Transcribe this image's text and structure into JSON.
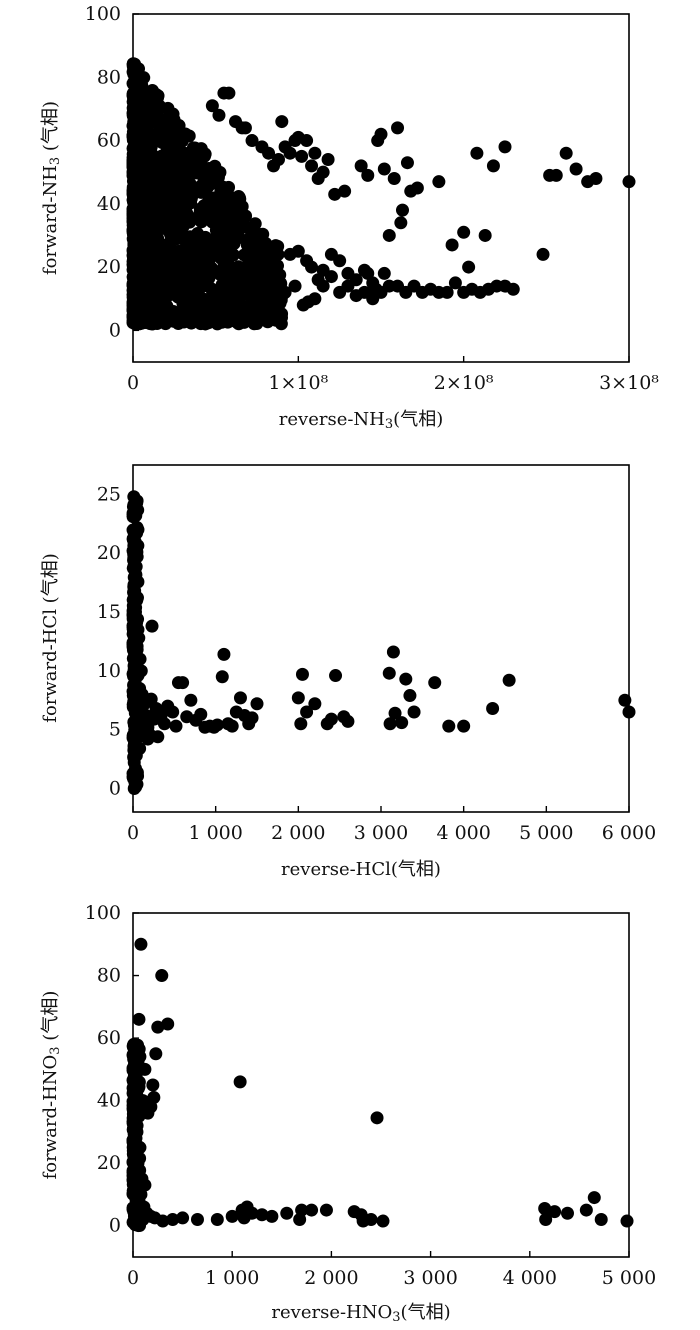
{
  "chart_data": [
    {
      "type": "scatter",
      "xlabel_parts": [
        "reverse-NH",
        "3",
        "(气相)"
      ],
      "ylabel_parts": [
        "forward-NH",
        "3",
        " (气相)"
      ],
      "xlim": [
        0,
        300000000
      ],
      "ylim": [
        -10,
        100
      ],
      "xticks": [
        0,
        100000000,
        200000000,
        300000000
      ],
      "xtick_labels": [
        "0",
        "1×10⁸",
        "2×10⁸",
        "3×10⁸"
      ],
      "yticks": [
        0,
        20,
        40,
        60,
        80,
        100
      ],
      "ytick_labels": [
        "0",
        "20",
        "40",
        "60",
        "80",
        "100"
      ],
      "marker_color": "#000000",
      "cluster": {
        "x_max": 90000000,
        "y_min": 2,
        "y_max": 85,
        "note_count": 1400
      },
      "points": [
        [
          48000000.0,
          71
        ],
        [
          52000000.0,
          68
        ],
        [
          55000000.0,
          75
        ],
        [
          58000000.0,
          75
        ],
        [
          62000000.0,
          66
        ],
        [
          66000000.0,
          64
        ],
        [
          68000000.0,
          64
        ],
        [
          72000000.0,
          60
        ],
        [
          78000000.0,
          58
        ],
        [
          82000000.0,
          56
        ],
        [
          85000000.0,
          52
        ],
        [
          88000000.0,
          54
        ],
        [
          90000000.0,
          66
        ],
        [
          92000000.0,
          58
        ],
        [
          95000000.0,
          56
        ],
        [
          98000000.0,
          60
        ],
        [
          100000000.0,
          61
        ],
        [
          102000000.0,
          55
        ],
        [
          105000000.0,
          60
        ],
        [
          108000000.0,
          52
        ],
        [
          110000000.0,
          56
        ],
        [
          112000000.0,
          48
        ],
        [
          115000000.0,
          50
        ],
        [
          118000000.0,
          54
        ],
        [
          122000000.0,
          43
        ],
        [
          128000000.0,
          44
        ],
        [
          138000000.0,
          52
        ],
        [
          142000000.0,
          49
        ],
        [
          148000000.0,
          60
        ],
        [
          150000000.0,
          62
        ],
        [
          152000000.0,
          51
        ],
        [
          155000000.0,
          30
        ],
        [
          158000000.0,
          48
        ],
        [
          160000000.0,
          64
        ],
        [
          162000000.0,
          34
        ],
        [
          163000000.0,
          38
        ],
        [
          166000000.0,
          53
        ],
        [
          168000000.0,
          44
        ],
        [
          172000000.0,
          45
        ],
        [
          185000000.0,
          47
        ],
        [
          193000000.0,
          27
        ],
        [
          200000000.0,
          31
        ],
        [
          203000000.0,
          20
        ],
        [
          208000000.0,
          56
        ],
        [
          213000000.0,
          30
        ],
        [
          218000000.0,
          52
        ],
        [
          225000000.0,
          58
        ],
        [
          248000000.0,
          24
        ],
        [
          252000000.0,
          49
        ],
        [
          256000000.0,
          49
        ],
        [
          262000000.0,
          56
        ],
        [
          268000000.0,
          51
        ],
        [
          275000000.0,
          47
        ],
        [
          280000000.0,
          48
        ],
        [
          300000000.0,
          47
        ],
        [
          60000000.0,
          28
        ],
        [
          70000000.0,
          22
        ],
        [
          80000000.0,
          20
        ],
        [
          85000000.0,
          24
        ],
        [
          95000000.0,
          24
        ],
        [
          100000000.0,
          25
        ],
        [
          105000000.0,
          22
        ],
        [
          108000000.0,
          20
        ],
        [
          115000000.0,
          19
        ],
        [
          120000000.0,
          24
        ],
        [
          125000000.0,
          22
        ],
        [
          130000000.0,
          18
        ],
        [
          135000000.0,
          16
        ],
        [
          140000000.0,
          19
        ],
        [
          145000000.0,
          15
        ],
        [
          150000000.0,
          12
        ],
        [
          152000000.0,
          18
        ],
        [
          155000000.0,
          14
        ],
        [
          160000000.0,
          14
        ],
        [
          165000000.0,
          12
        ],
        [
          170000000.0,
          14
        ],
        [
          175000000.0,
          12
        ],
        [
          180000000.0,
          13
        ],
        [
          185000000.0,
          12
        ],
        [
          195000000.0,
          15
        ],
        [
          200000000.0,
          12
        ],
        [
          205000000.0,
          13
        ],
        [
          210000000.0,
          12
        ],
        [
          215000000.0,
          13
        ],
        [
          220000000.0,
          14
        ],
        [
          225000000.0,
          14
        ],
        [
          230000000.0,
          13
        ],
        [
          110000000.0,
          10
        ],
        [
          115000000.0,
          14
        ],
        [
          125000000.0,
          12
        ],
        [
          135000000.0,
          11
        ],
        [
          140000000.0,
          12
        ],
        [
          145000000.0,
          10
        ],
        [
          190000000.0,
          12
        ],
        [
          78000000.0,
          9
        ],
        [
          88000000.0,
          10
        ],
        [
          92000000.0,
          12
        ],
        [
          98000000.0,
          14
        ],
        [
          103000000.0,
          8
        ],
        [
          106000000.0,
          9
        ],
        [
          112000000.0,
          16
        ],
        [
          130000000.0,
          14
        ],
        [
          142000000.0,
          18
        ],
        [
          147000000.0,
          13
        ],
        [
          120000000.0,
          17
        ]
      ]
    },
    {
      "type": "scatter",
      "xlabel_parts": [
        "reverse-HCl(气相)"
      ],
      "ylabel_parts": [
        "forward-HCl (气相)"
      ],
      "xlim": [
        0,
        6000
      ],
      "ylim": [
        -2,
        27.5
      ],
      "xticks": [
        0,
        1000,
        2000,
        3000,
        4000,
        5000,
        6000
      ],
      "xtick_labels": [
        "0",
        "1 000",
        "2 000",
        "3 000",
        "4 000",
        "5 000",
        "6 000"
      ],
      "yticks": [
        0,
        5,
        10,
        15,
        20,
        25
      ],
      "ytick_labels": [
        "0",
        "5",
        "10",
        "15",
        "20",
        "25"
      ],
      "marker_color": "#000000",
      "cluster": {
        "x_max": 60,
        "y_min": 0,
        "y_max": 25,
        "note_count": 140
      },
      "points": [
        [
          10,
          24.8
        ],
        [
          20,
          23.4
        ],
        [
          30,
          22
        ],
        [
          15,
          21.7
        ],
        [
          25,
          21
        ],
        [
          40,
          20.5
        ],
        [
          10,
          19.6
        ],
        [
          35,
          17.5
        ],
        [
          20,
          16.8
        ],
        [
          45,
          16
        ],
        [
          30,
          15
        ],
        [
          55,
          14.4
        ],
        [
          15,
          14
        ],
        [
          60,
          13.5
        ],
        [
          230,
          13.8
        ],
        [
          70,
          12.8
        ],
        [
          20,
          12.3
        ],
        [
          50,
          11.8
        ],
        [
          85,
          11
        ],
        [
          30,
          10.5
        ],
        [
          100,
          10
        ],
        [
          60,
          9.6
        ],
        [
          25,
          9
        ],
        [
          80,
          8.5
        ],
        [
          110,
          8
        ],
        [
          40,
          7.6
        ],
        [
          140,
          7.2
        ],
        [
          60,
          6.6
        ],
        [
          160,
          6.2
        ],
        [
          90,
          5.8
        ],
        [
          30,
          5.5
        ],
        [
          180,
          5.2
        ],
        [
          120,
          4.8
        ],
        [
          200,
          4.6
        ],
        [
          50,
          4.3
        ],
        [
          20,
          3.8
        ],
        [
          80,
          3.4
        ],
        [
          40,
          2.8
        ],
        [
          15,
          2.2
        ],
        [
          30,
          1.7
        ],
        [
          10,
          1.1
        ],
        [
          25,
          0.5
        ],
        [
          15,
          0
        ],
        [
          220,
          7.6
        ],
        [
          280,
          6.8
        ],
        [
          340,
          6.2
        ],
        [
          380,
          5.5
        ],
        [
          420,
          7
        ],
        [
          480,
          6.5
        ],
        [
          520,
          5.3
        ],
        [
          550,
          9
        ],
        [
          600,
          9
        ],
        [
          650,
          6.1
        ],
        [
          700,
          7.5
        ],
        [
          760,
          5.8
        ],
        [
          820,
          6.3
        ],
        [
          870,
          5.2
        ],
        [
          930,
          5.3
        ],
        [
          980,
          5.2
        ],
        [
          1020,
          5.4
        ],
        [
          1100,
          11.4
        ],
        [
          1080,
          9.5
        ],
        [
          1150,
          5.5
        ],
        [
          1200,
          5.3
        ],
        [
          1250,
          6.5
        ],
        [
          1300,
          7.7
        ],
        [
          1350,
          6.2
        ],
        [
          1400,
          5.5
        ],
        [
          1500,
          7.2
        ],
        [
          1440,
          6
        ],
        [
          2000,
          7.7
        ],
        [
          2050,
          9.7
        ],
        [
          2030,
          5.5
        ],
        [
          2100,
          6.5
        ],
        [
          2200,
          7.2
        ],
        [
          2350,
          5.5
        ],
        [
          2400,
          5.9
        ],
        [
          2450,
          9.6
        ],
        [
          2550,
          6.1
        ],
        [
          2600,
          5.7
        ],
        [
          3100,
          9.8
        ],
        [
          3150,
          11.6
        ],
        [
          3170,
          6.4
        ],
        [
          3110,
          5.5
        ],
        [
          3250,
          5.6
        ],
        [
          3300,
          9.3
        ],
        [
          3350,
          7.9
        ],
        [
          3400,
          6.5
        ],
        [
          3650,
          9
        ],
        [
          3820,
          5.3
        ],
        [
          4000,
          5.3
        ],
        [
          4350,
          6.8
        ],
        [
          4550,
          9.2
        ],
        [
          5950,
          7.5
        ],
        [
          6000,
          6.5
        ],
        [
          300,
          4.4
        ],
        [
          260,
          5.9
        ],
        [
          180,
          4.2
        ]
      ]
    },
    {
      "type": "scatter",
      "xlabel_parts": [
        "reverse-HNO",
        "3",
        "(气相)"
      ],
      "ylabel_parts": [
        "forward-HNO",
        "3",
        " (气相)"
      ],
      "xlim": [
        0,
        5000
      ],
      "ylim": [
        -10,
        100
      ],
      "xticks": [
        0,
        1000,
        2000,
        3000,
        4000,
        5000
      ],
      "xtick_labels": [
        "0",
        "1 000",
        "2 000",
        "3 000",
        "4 000",
        "5 000"
      ],
      "yticks": [
        0,
        20,
        40,
        60,
        80,
        100
      ],
      "ytick_labels": [
        "0",
        "20",
        "40",
        "60",
        "80",
        "100"
      ],
      "marker_color": "#000000",
      "cluster": {
        "x_max": 70,
        "y_min": 0,
        "y_max": 58,
        "note_count": 160
      },
      "points": [
        [
          80,
          90
        ],
        [
          290,
          80
        ],
        [
          60,
          66
        ],
        [
          350,
          64.5
        ],
        [
          250,
          63.5
        ],
        [
          230,
          55
        ],
        [
          120,
          50
        ],
        [
          200,
          45
        ],
        [
          210,
          41
        ],
        [
          180,
          38
        ],
        [
          150,
          36
        ],
        [
          100,
          40
        ],
        [
          60,
          35
        ],
        [
          40,
          30
        ],
        [
          30,
          28
        ],
        [
          70,
          25
        ],
        [
          50,
          20
        ],
        [
          30,
          18
        ],
        [
          90,
          15
        ],
        [
          120,
          13
        ],
        [
          80,
          10
        ],
        [
          60,
          8
        ],
        [
          110,
          6
        ],
        [
          140,
          4
        ],
        [
          180,
          3
        ],
        [
          100,
          2
        ],
        [
          220,
          2.5
        ],
        [
          300,
          1.5
        ],
        [
          400,
          2
        ],
        [
          500,
          2.5
        ],
        [
          650,
          2
        ],
        [
          850,
          2
        ],
        [
          1000,
          3
        ],
        [
          1080,
          46
        ],
        [
          1100,
          5
        ],
        [
          1120,
          2.5
        ],
        [
          1150,
          6
        ],
        [
          1200,
          4
        ],
        [
          1300,
          3.5
        ],
        [
          1400,
          3
        ],
        [
          1550,
          4
        ],
        [
          1680,
          2
        ],
        [
          1700,
          5
        ],
        [
          1800,
          5
        ],
        [
          1950,
          5
        ],
        [
          2230,
          4.5
        ],
        [
          2300,
          3.5
        ],
        [
          2320,
          1.5
        ],
        [
          2400,
          2
        ],
        [
          2460,
          34.5
        ],
        [
          2520,
          1.5
        ],
        [
          4150,
          5.5
        ],
        [
          4160,
          2
        ],
        [
          4250,
          4.5
        ],
        [
          4380,
          4
        ],
        [
          4570,
          5
        ],
        [
          4650,
          9
        ],
        [
          4720,
          2
        ],
        [
          4980,
          1.5
        ]
      ]
    }
  ]
}
